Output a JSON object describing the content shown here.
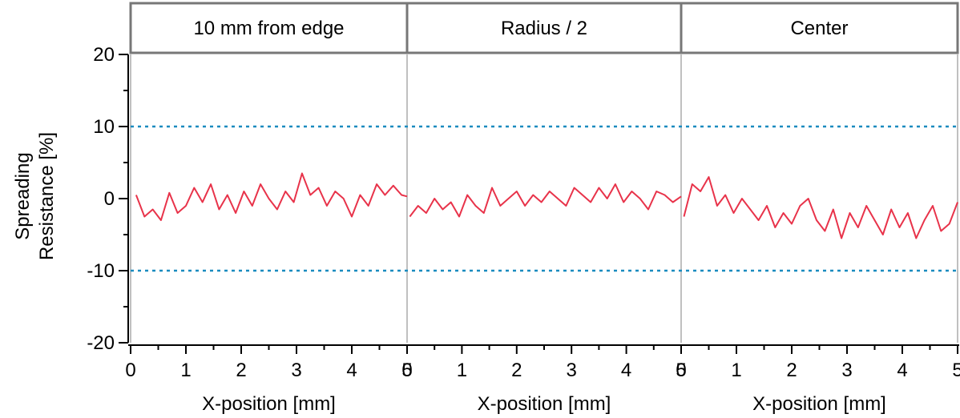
{
  "chart_data": {
    "type": "line",
    "ylabel_lines": [
      "Spreading",
      "Resistance [%]"
    ],
    "ylim": [
      -20,
      20
    ],
    "yticks": [
      "20",
      "10",
      "0",
      "-10",
      "-20"
    ],
    "ytick_values": [
      20,
      10,
      0,
      -10,
      -20
    ],
    "xlim": [
      0,
      5
    ],
    "xticks": [
      "0",
      "1",
      "2",
      "3",
      "4",
      "5"
    ],
    "xtick_values": [
      0,
      1,
      2,
      3,
      4,
      5
    ],
    "reference_lines": [
      10,
      -10
    ],
    "colors": {
      "series": "#e8334a",
      "reference": "#1a8bbf",
      "frame": "#c0c0c0",
      "header_border": "#777777"
    },
    "grid": false,
    "panels": [
      {
        "title": "10 mm from edge",
        "xlabel": "X-position [mm]",
        "x": [
          0.1,
          0.25,
          0.4,
          0.55,
          0.7,
          0.85,
          1.0,
          1.15,
          1.3,
          1.45,
          1.6,
          1.75,
          1.9,
          2.05,
          2.2,
          2.35,
          2.5,
          2.65,
          2.8,
          2.95,
          3.1,
          3.25,
          3.4,
          3.55,
          3.7,
          3.85,
          4.0,
          4.15,
          4.3,
          4.45,
          4.6,
          4.75,
          4.9,
          5.0
        ],
        "y": [
          0.5,
          -2.5,
          -1.5,
          -3.0,
          0.8,
          -2.0,
          -1.0,
          1.5,
          -0.5,
          2.0,
          -1.5,
          0.5,
          -2.0,
          1.0,
          -1.0,
          2.0,
          0.0,
          -1.5,
          1.0,
          -0.5,
          3.5,
          0.5,
          1.5,
          -1.0,
          1.0,
          0.0,
          -2.5,
          0.5,
          -1.0,
          2.0,
          0.5,
          1.8,
          0.5,
          0.3
        ]
      },
      {
        "title": "Radius / 2",
        "xlabel": "X-position [mm]",
        "x": [
          0.05,
          0.2,
          0.35,
          0.5,
          0.65,
          0.8,
          0.95,
          1.1,
          1.25,
          1.4,
          1.55,
          1.7,
          1.85,
          2.0,
          2.15,
          2.3,
          2.45,
          2.6,
          2.75,
          2.9,
          3.05,
          3.2,
          3.35,
          3.5,
          3.65,
          3.8,
          3.95,
          4.1,
          4.25,
          4.4,
          4.55,
          4.7,
          4.85,
          5.0
        ],
        "y": [
          -2.5,
          -1.0,
          -2.0,
          0.0,
          -1.5,
          -0.5,
          -2.5,
          0.5,
          -1.0,
          -2.0,
          1.5,
          -1.0,
          0.0,
          1.0,
          -1.0,
          0.5,
          -0.5,
          1.0,
          0.0,
          -1.0,
          1.5,
          0.5,
          -0.5,
          1.5,
          0.0,
          2.0,
          -0.5,
          1.0,
          0.0,
          -1.5,
          1.0,
          0.5,
          -0.5,
          0.3
        ]
      },
      {
        "title": "Center",
        "xlabel": "X-position [mm]",
        "x": [
          0.05,
          0.2,
          0.35,
          0.5,
          0.65,
          0.8,
          0.95,
          1.1,
          1.25,
          1.4,
          1.55,
          1.7,
          1.85,
          2.0,
          2.15,
          2.3,
          2.45,
          2.6,
          2.75,
          2.9,
          3.05,
          3.2,
          3.35,
          3.5,
          3.65,
          3.8,
          3.95,
          4.1,
          4.25,
          4.4,
          4.55,
          4.7,
          4.85,
          5.0
        ],
        "y": [
          -2.5,
          2.0,
          1.0,
          3.0,
          -1.0,
          0.5,
          -2.0,
          0.0,
          -1.5,
          -3.0,
          -1.0,
          -4.0,
          -2.0,
          -3.5,
          -1.0,
          0.0,
          -3.0,
          -4.5,
          -1.5,
          -5.5,
          -2.0,
          -4.0,
          -1.0,
          -3.0,
          -5.0,
          -1.5,
          -4.0,
          -2.0,
          -5.5,
          -3.0,
          -1.0,
          -4.5,
          -3.5,
          -0.5
        ]
      }
    ]
  }
}
